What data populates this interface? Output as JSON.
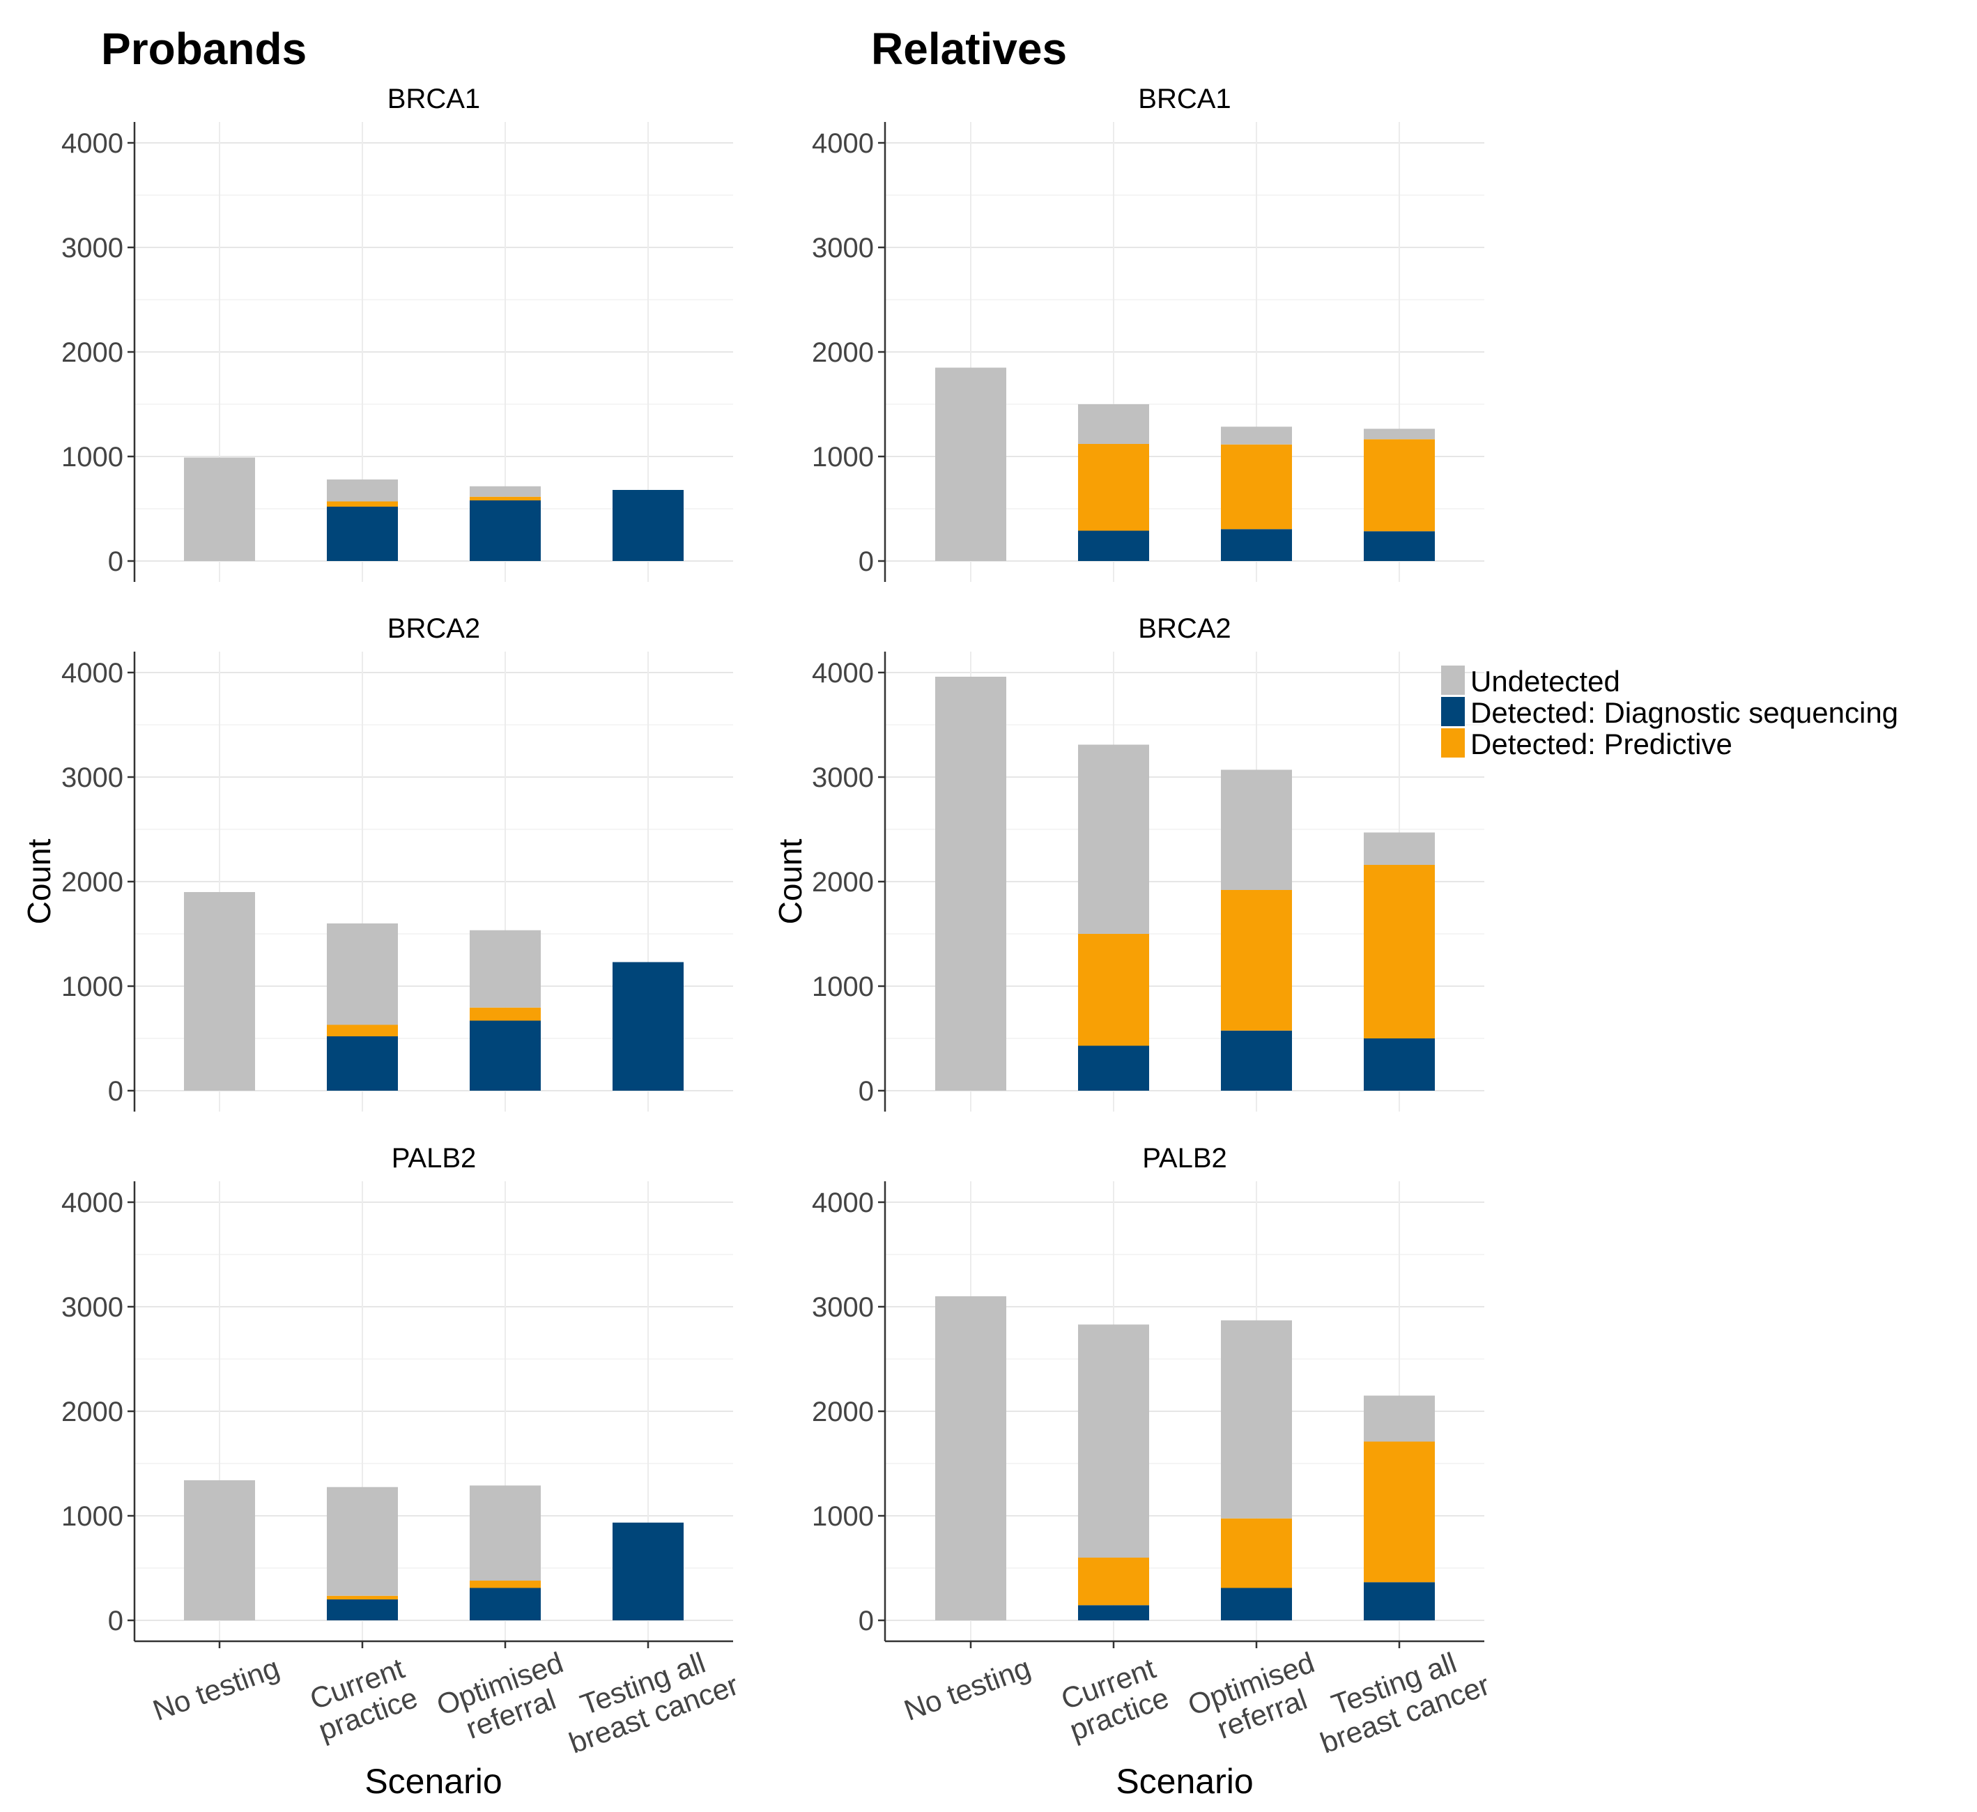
{
  "groups": {
    "left": "Probands",
    "right": "Relatives"
  },
  "xlabel": "Scenario",
  "ylabel": "Count",
  "categories": [
    "No testing",
    "Current\npractice",
    "Optimised\nreferral",
    "Testing all\nbreast cancer"
  ],
  "yticks": [
    "0",
    "1000",
    "2000",
    "3000",
    "4000"
  ],
  "legend": {
    "items": [
      {
        "label": "Undetected",
        "color": "#c0c0c0"
      },
      {
        "label": "Detected: Diagnostic sequencing",
        "color": "#004579"
      },
      {
        "label": "Detected: Predictive",
        "color": "#f8a005"
      }
    ],
    "placement": "right of Relatives BRCA2 panel"
  },
  "chart_data": [
    {
      "type": "bar",
      "stacked": true,
      "group": "Probands",
      "title": "BRCA1",
      "categories": [
        "No testing",
        "Current practice",
        "Optimised referral",
        "Testing all breast cancer"
      ],
      "ylim": [
        0,
        4000
      ],
      "grid": true,
      "series": [
        {
          "name": "Detected: Diagnostic sequencing",
          "color": "#004579",
          "values": [
            0,
            520,
            580,
            680
          ]
        },
        {
          "name": "Detected: Predictive",
          "color": "#f8a005",
          "values": [
            0,
            50,
            35,
            0
          ]
        },
        {
          "name": "Undetected",
          "color": "#c0c0c0",
          "values": [
            990,
            210,
            100,
            0
          ]
        }
      ]
    },
    {
      "type": "bar",
      "stacked": true,
      "group": "Relatives",
      "title": "BRCA1",
      "categories": [
        "No testing",
        "Current practice",
        "Optimised referral",
        "Testing all breast cancer"
      ],
      "ylim": [
        0,
        4000
      ],
      "grid": true,
      "series": [
        {
          "name": "Detected: Diagnostic sequencing",
          "color": "#004579",
          "values": [
            0,
            290,
            305,
            285
          ]
        },
        {
          "name": "Detected: Predictive",
          "color": "#f8a005",
          "values": [
            0,
            830,
            810,
            880
          ]
        },
        {
          "name": "Undetected",
          "color": "#c0c0c0",
          "values": [
            1850,
            380,
            170,
            100
          ]
        }
      ]
    },
    {
      "type": "bar",
      "stacked": true,
      "group": "Probands",
      "title": "BRCA2",
      "categories": [
        "No testing",
        "Current practice",
        "Optimised referral",
        "Testing all breast cancer"
      ],
      "ylim": [
        0,
        4000
      ],
      "grid": true,
      "series": [
        {
          "name": "Detected: Diagnostic sequencing",
          "color": "#004579",
          "values": [
            0,
            520,
            670,
            1230
          ]
        },
        {
          "name": "Detected: Predictive",
          "color": "#f8a005",
          "values": [
            0,
            110,
            125,
            0
          ]
        },
        {
          "name": "Undetected",
          "color": "#c0c0c0",
          "values": [
            1900,
            970,
            740,
            0
          ]
        }
      ]
    },
    {
      "type": "bar",
      "stacked": true,
      "group": "Relatives",
      "title": "BRCA2",
      "categories": [
        "No testing",
        "Current practice",
        "Optimised referral",
        "Testing all breast cancer"
      ],
      "ylim": [
        0,
        4000
      ],
      "grid": true,
      "series": [
        {
          "name": "Detected: Diagnostic sequencing",
          "color": "#004579",
          "values": [
            0,
            430,
            575,
            500
          ]
        },
        {
          "name": "Detected: Predictive",
          "color": "#f8a005",
          "values": [
            0,
            1070,
            1345,
            1660
          ]
        },
        {
          "name": "Undetected",
          "color": "#c0c0c0",
          "values": [
            3960,
            1810,
            1150,
            310
          ]
        }
      ]
    },
    {
      "type": "bar",
      "stacked": true,
      "group": "Probands",
      "title": "PALB2",
      "categories": [
        "No testing",
        "Current practice",
        "Optimised referral",
        "Testing all breast cancer"
      ],
      "ylim": [
        0,
        4000
      ],
      "grid": true,
      "series": [
        {
          "name": "Detected: Diagnostic sequencing",
          "color": "#004579",
          "values": [
            0,
            200,
            310,
            935
          ]
        },
        {
          "name": "Detected: Predictive",
          "color": "#f8a005",
          "values": [
            0,
            35,
            70,
            0
          ]
        },
        {
          "name": "Undetected",
          "color": "#c0c0c0",
          "values": [
            1340,
            1040,
            910,
            0
          ]
        }
      ]
    },
    {
      "type": "bar",
      "stacked": true,
      "group": "Relatives",
      "title": "PALB2",
      "categories": [
        "No testing",
        "Current practice",
        "Optimised referral",
        "Testing all breast cancer"
      ],
      "ylim": [
        0,
        4000
      ],
      "grid": true,
      "series": [
        {
          "name": "Detected: Diagnostic sequencing",
          "color": "#004579",
          "values": [
            0,
            145,
            310,
            365
          ]
        },
        {
          "name": "Detected: Predictive",
          "color": "#f8a005",
          "values": [
            0,
            455,
            665,
            1345
          ]
        },
        {
          "name": "Undetected",
          "color": "#c0c0c0",
          "values": [
            3100,
            2230,
            1895,
            440
          ]
        }
      ]
    }
  ]
}
